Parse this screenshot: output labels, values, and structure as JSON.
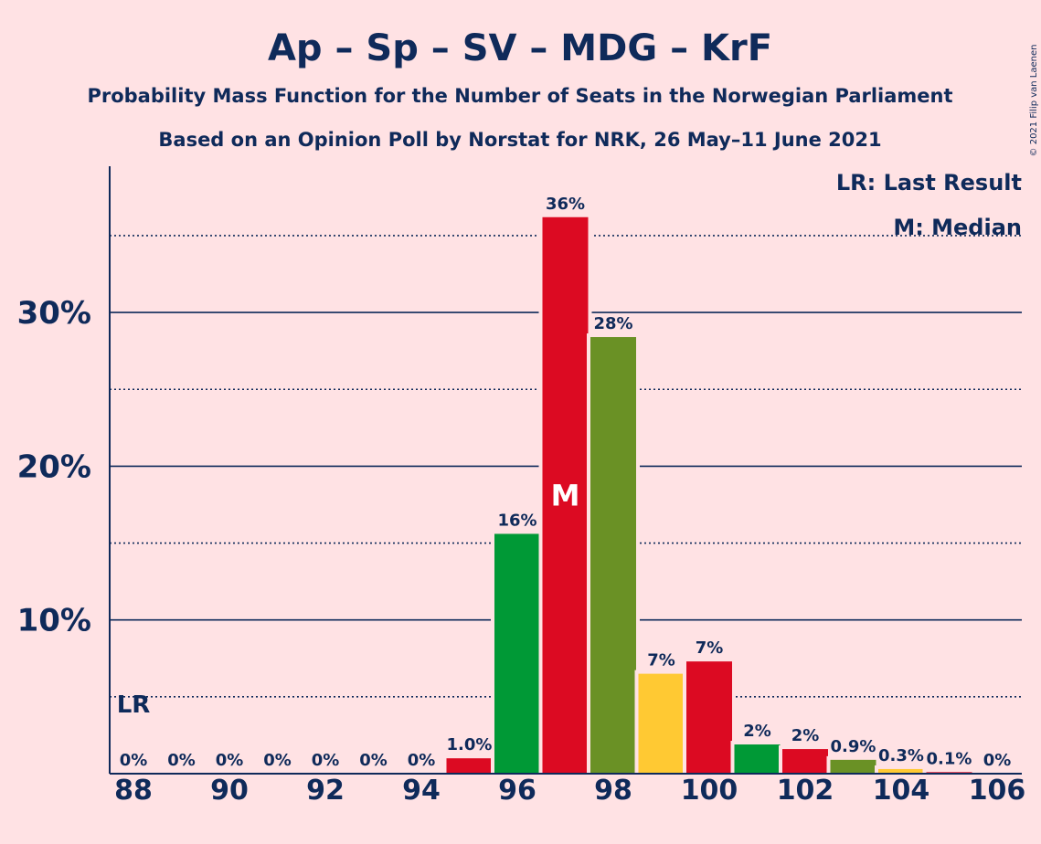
{
  "chart_data": {
    "type": "bar",
    "title": "Ap – Sp – SV – MDG – KrF",
    "subtitle_lines": [
      "Probability Mass Function for the Number of Seats in the Norwegian Parliament",
      "Based on an Opinion Poll by Norstat for NRK, 26 May–11 June 2021"
    ],
    "copyright": "© 2021 Filip van Laenen",
    "legend": [
      "LR: Last Result",
      "M: Median"
    ],
    "legend_position": "top-right",
    "x": [
      88,
      89,
      90,
      91,
      92,
      93,
      94,
      95,
      96,
      97,
      98,
      99,
      100,
      101,
      102,
      103,
      104,
      105,
      106
    ],
    "values": [
      0,
      0,
      0,
      0,
      0,
      0,
      0,
      1.0,
      15.6,
      36.2,
      28.4,
      6.5,
      7.3,
      1.9,
      1.6,
      0.9,
      0.3,
      0.1,
      0
    ],
    "labels": [
      "0%",
      "0%",
      "0%",
      "0%",
      "0%",
      "0%",
      "0%",
      "1.0%",
      "16%",
      "36%",
      "28%",
      "7%",
      "7%",
      "2%",
      "2%",
      "0.9%",
      "0.3%",
      "0.1%",
      "0%"
    ],
    "colors": [
      "#dc0a22",
      "#009936",
      "#6a9125",
      "#ffc933",
      "#dc0a22",
      "#009936",
      "#dc0a22",
      "#dc0a22",
      "#009936",
      "#dc0a22",
      "#6a9125",
      "#ffc933",
      "#dc0a22",
      "#009936",
      "#dc0a22",
      "#6a9125",
      "#ffc933",
      "#dc0a22",
      "#009936"
    ],
    "x_ticks": [
      88,
      90,
      92,
      94,
      96,
      98,
      100,
      102,
      104,
      106
    ],
    "x_tick_labels": [
      "88",
      "90",
      "92",
      "94",
      "96",
      "98",
      "100",
      "102",
      "104",
      "106"
    ],
    "y_ticks": [
      10,
      20,
      30
    ],
    "y_tick_labels": [
      "10%",
      "20%",
      "30%"
    ],
    "y_dotted_gridlines": [
      5,
      15,
      25,
      35
    ],
    "ylim": [
      0,
      39.5
    ],
    "median": {
      "x": 97,
      "label": "M"
    },
    "last_result": {
      "x": 88,
      "label": "LR"
    }
  }
}
